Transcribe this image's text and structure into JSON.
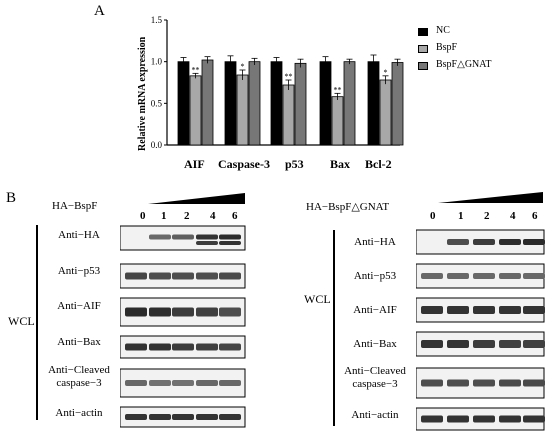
{
  "panels": {
    "a": "A",
    "b": "B"
  },
  "chart_data": {
    "type": "bar",
    "ylabel": "Relative mRNA  expression",
    "ylim": [
      0,
      1.5
    ],
    "yticks": [
      "0.0",
      "0.5",
      "1.0",
      "1.5"
    ],
    "categories": [
      "AIF",
      "Caspase-3",
      "p53",
      "Bax",
      "Bcl-2"
    ],
    "series": [
      {
        "name": "NC",
        "color": "#000000",
        "values": [
          1.0,
          1.0,
          1.0,
          1.0,
          1.0
        ],
        "errors": [
          0.05,
          0.07,
          0.05,
          0.06,
          0.08
        ]
      },
      {
        "name": "BspF",
        "color": "#a8a8a8",
        "values": [
          0.83,
          0.84,
          0.72,
          0.58,
          0.78
        ],
        "errors": [
          0.03,
          0.06,
          0.06,
          0.04,
          0.05
        ]
      },
      {
        "name": "BspF△GNAT",
        "color": "#777777",
        "values": [
          1.02,
          1.0,
          0.98,
          1.0,
          0.99
        ],
        "errors": [
          0.04,
          0.04,
          0.05,
          0.03,
          0.04
        ]
      }
    ],
    "significance": [
      "**",
      "*",
      "**",
      "**",
      "*"
    ],
    "legend_position": "top-right"
  },
  "blot_left": {
    "condition": "HA−BspF",
    "lanes": [
      "0",
      "1",
      "2",
      "4",
      "6"
    ],
    "side_label": "WCL",
    "antibodies": [
      "Anti−HA",
      "Anti−p53",
      "Anti−AIF",
      "Anti−Bax",
      "Anti−Cleaved caspase−3",
      "Anti−actin"
    ]
  },
  "blot_right": {
    "condition": "HA−BspF△GNAT",
    "lanes": [
      "0",
      "1",
      "2",
      "4",
      "6"
    ],
    "side_label": "WCL",
    "antibodies": [
      "Anti−HA",
      "Anti−p53",
      "Anti−AIF",
      "Anti−Bax",
      "Anti−Cleaved caspase−3",
      "Anti−actin"
    ]
  }
}
